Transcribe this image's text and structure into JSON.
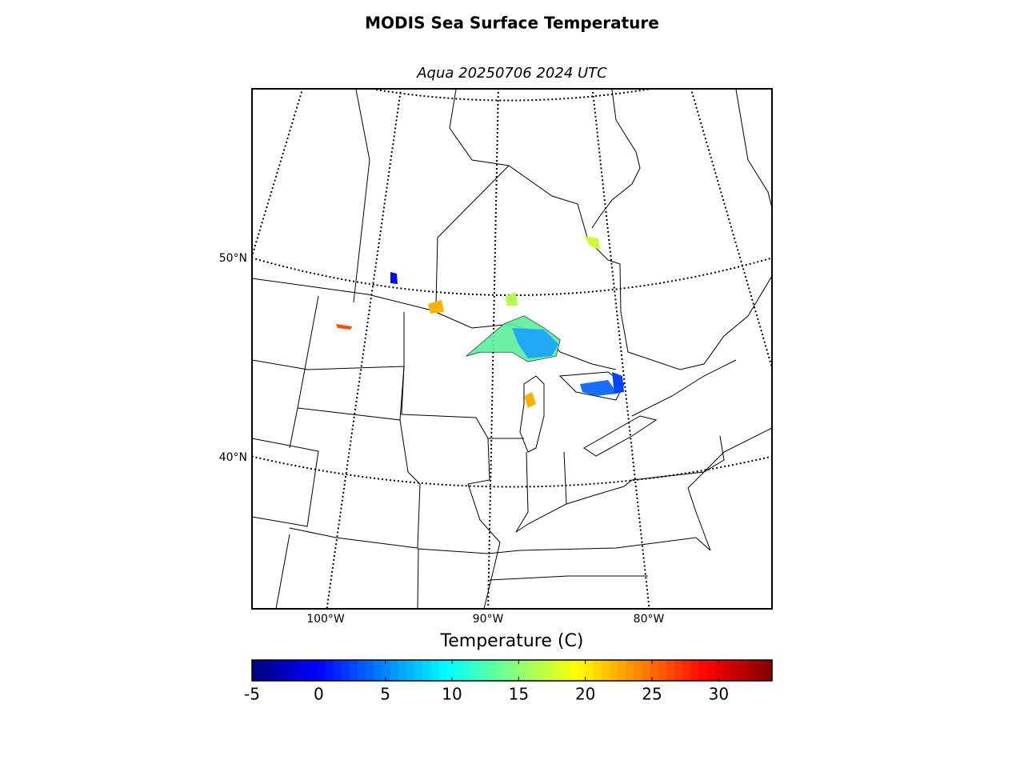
{
  "title": "MODIS Sea Surface Temperature",
  "subtitle": "Aqua 20250706 2024 UTC",
  "map": {
    "latitude_labels": [
      "50°N",
      "40°N"
    ],
    "longitude_labels": [
      "100°W",
      "90°W",
      "80°W"
    ]
  },
  "colorbar": {
    "label": "Temperature (C)",
    "colormap": "jet",
    "range": [
      -5,
      34
    ],
    "ticks": [
      -5,
      0,
      5,
      10,
      15,
      20,
      25,
      30
    ]
  }
}
